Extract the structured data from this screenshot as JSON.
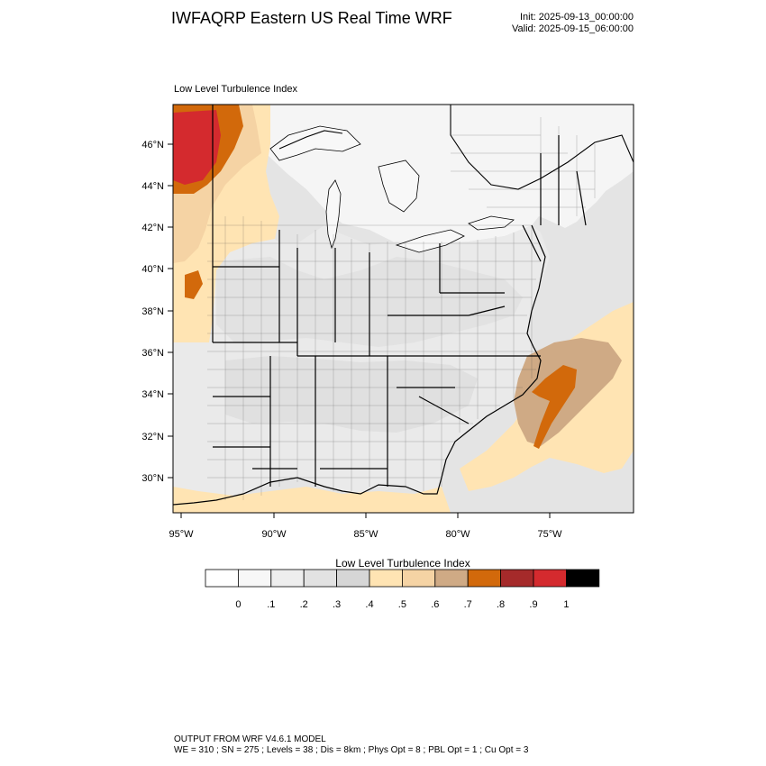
{
  "header": {
    "title": "IWFAQRP Eastern US Real Time WRF",
    "init": "Init: 2025-09-13_00:00:00",
    "valid": "Valid: 2025-09-15_06:00:00"
  },
  "panel": {
    "label": "Low Level Turbulence Index"
  },
  "map": {
    "lat_ticks": [
      "46°N",
      "44°N",
      "42°N",
      "40°N",
      "38°N",
      "36°N",
      "34°N",
      "32°N",
      "30°N"
    ],
    "lon_ticks": [
      "95°W",
      "90°W",
      "85°W",
      "80°W",
      "75°W"
    ],
    "lat_range": [
      28.5,
      47.8
    ],
    "lon_range": [
      -95.3,
      -72.4
    ],
    "colors": {
      "ocean_light": "#e6e6e6",
      "land_light": "#f4f4f4",
      "lake": "#f7f7f7"
    }
  },
  "colorbar": {
    "title": "Low Level Turbulence Index",
    "labels": [
      "0",
      ".1",
      ".2",
      ".3",
      ".4",
      ".5",
      ".6",
      ".7",
      ".8",
      ".9",
      "1"
    ],
    "colors": [
      "#ffffff",
      "#f7f7f7",
      "#eeeeee",
      "#e2e2e2",
      "#d6d6d6",
      "#ffe4b3",
      "#f5d3a4",
      "#cfaa85",
      "#d2690b",
      "#a52a2a",
      "#d42a2e",
      "#000000"
    ]
  },
  "footer": {
    "line1": "OUTPUT FROM WRF V4.6.1 MODEL",
    "line2": "WE = 310 ; SN = 275 ; Levels = 38 ; Dis = 8km ; Phys Opt = 8 ; PBL Opt = 1 ; Cu Opt = 3"
  }
}
